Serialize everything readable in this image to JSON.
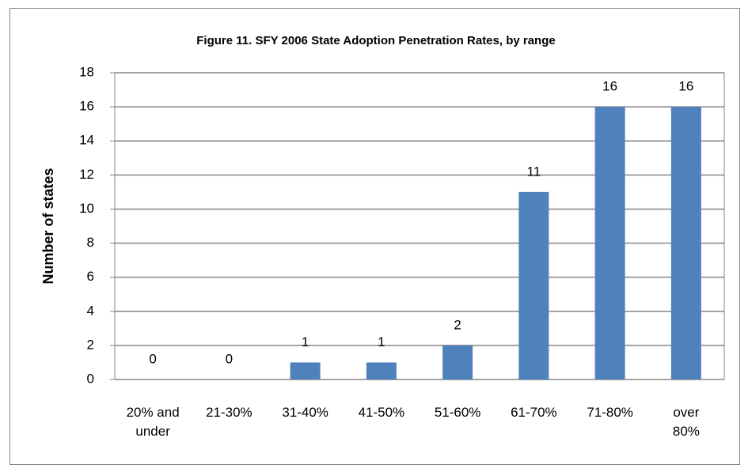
{
  "chart_data": {
    "type": "bar",
    "title": "Figure 11. SFY 2006 State Adoption Penetration Rates, by range",
    "y_label": "Number of states",
    "categories": [
      "20% and under",
      "21-30%",
      "31-40%",
      "41-50%",
      "51-60%",
      "61-70%",
      "71-80%",
      "over 80%"
    ],
    "values": [
      0,
      0,
      1,
      1,
      2,
      11,
      16,
      16
    ],
    "color": "#4f81bd",
    "ylim": [
      0,
      18
    ],
    "yticks": [
      0,
      2,
      4,
      6,
      8,
      10,
      12,
      14,
      16,
      18
    ],
    "grid": true
  }
}
